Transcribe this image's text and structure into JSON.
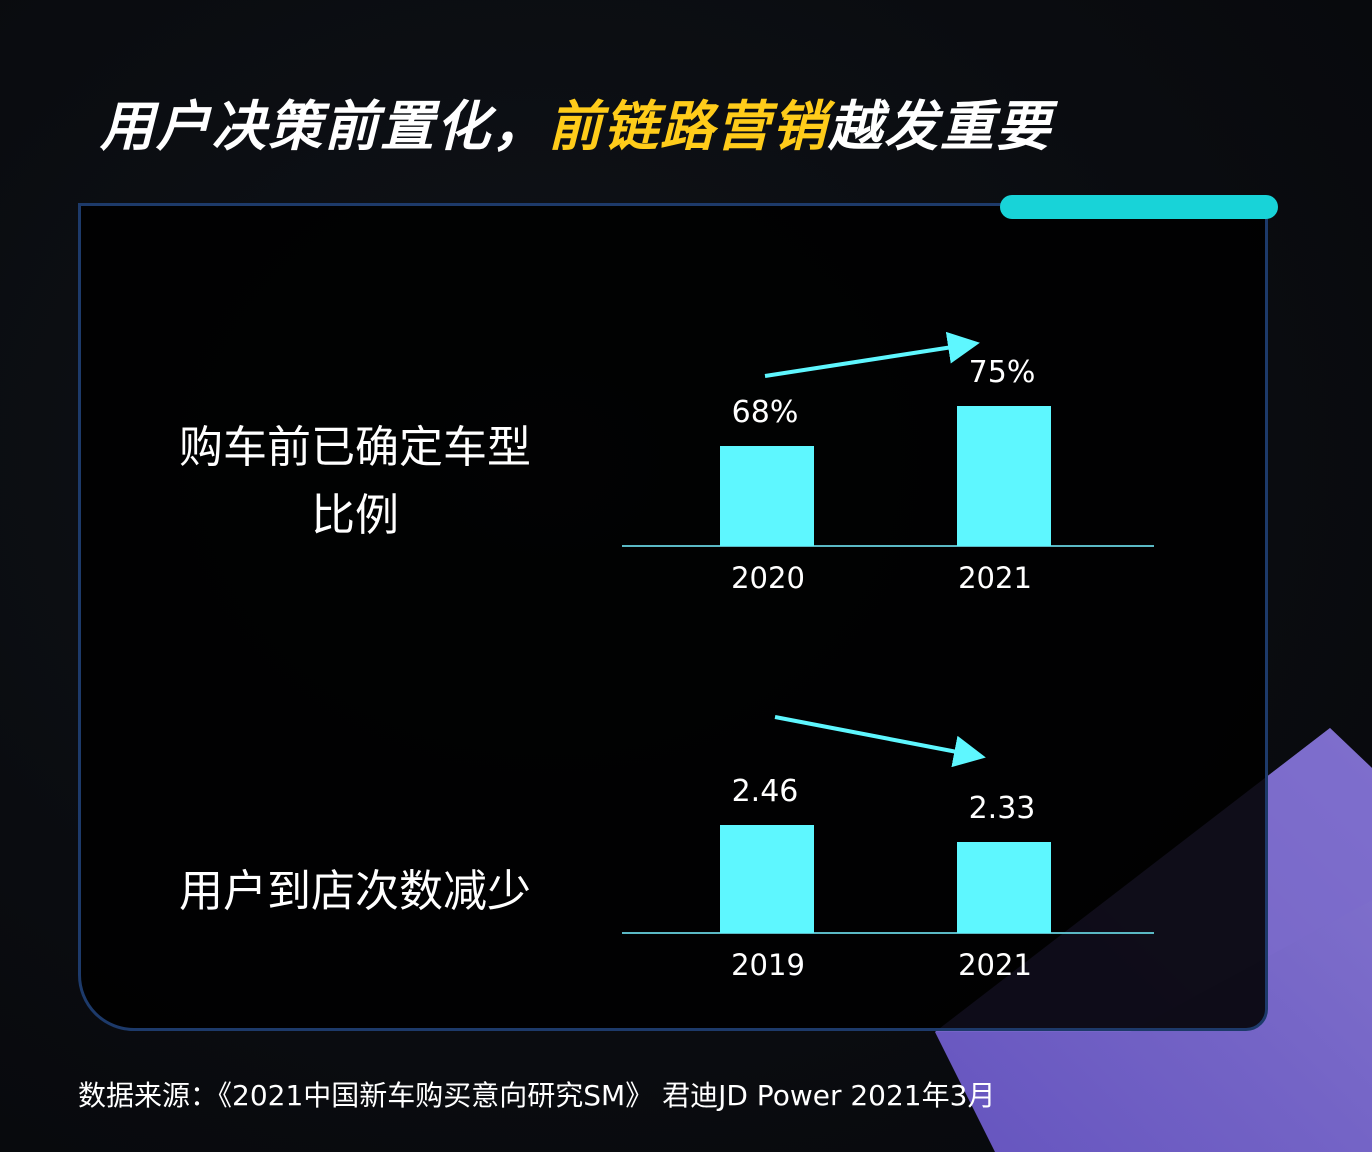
{
  "title": {
    "part1": "用户决策前置化，",
    "part2": "前链路营销",
    "part3": "越发重要"
  },
  "colors": {
    "bar": "#5ef7ff",
    "axis": "#5ab8c4",
    "arrow": "#5ef7ff",
    "title_highlight": "#ffcc1a",
    "panel_border": "#1d3a6a",
    "tab": "#18d3d8"
  },
  "source": "数据来源：《2021中国新车购买意向研究SM》 君迪JD Power 2021年3月",
  "chart_data": [
    {
      "type": "bar",
      "title": "购车前已确定车型比例",
      "title_lines": [
        "购车前已确定车型",
        "比例"
      ],
      "categories": [
        "2020",
        "2021"
      ],
      "values": [
        68,
        75
      ],
      "value_labels": [
        "68%",
        "75%"
      ],
      "trend": "up",
      "grid": false
    },
    {
      "type": "bar",
      "title": "用户到店次数减少",
      "title_lines": [
        "用户到店次数减少"
      ],
      "categories": [
        "2019",
        "2021"
      ],
      "values": [
        2.46,
        2.33
      ],
      "value_labels": [
        "2.46",
        "2.33"
      ],
      "trend": "down",
      "grid": false
    }
  ]
}
